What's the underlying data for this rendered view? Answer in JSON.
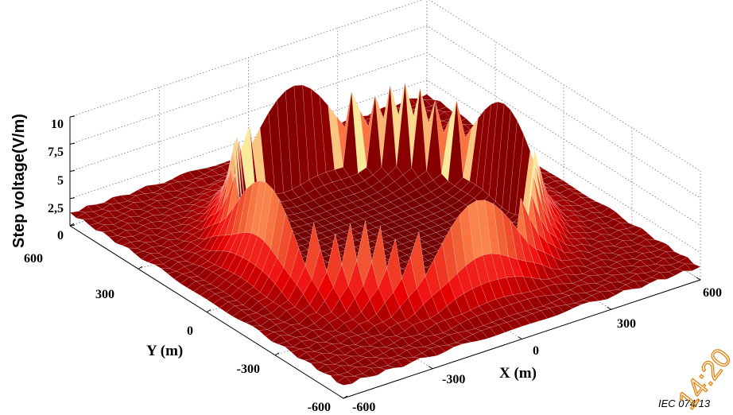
{
  "chart_data": {
    "type": "surface",
    "xlabel": "X (m)",
    "ylabel": "Y (m)",
    "zlabel": "Step voltage(V/m)",
    "x_ticks": [
      "-600",
      "-300",
      "0",
      "300",
      "600"
    ],
    "y_ticks": [
      "-600",
      "-300",
      "0",
      "300",
      "600"
    ],
    "z_ticks": [
      "0",
      "2,5",
      "5",
      "7,5",
      "10"
    ],
    "xlim": [
      -600,
      600
    ],
    "ylim": [
      -600,
      600
    ],
    "zlim": [
      0,
      10
    ],
    "grid": true,
    "colormap": "hot",
    "rim_radius_m": 400,
    "rim_step_voltage_peak": 10,
    "corner_step_voltage": 1.2,
    "colors": {
      "low": "#7a0000",
      "mid": "#e01010",
      "high": "#ffff80"
    }
  },
  "caption": "IEC  074/13",
  "watermark": "14:20"
}
